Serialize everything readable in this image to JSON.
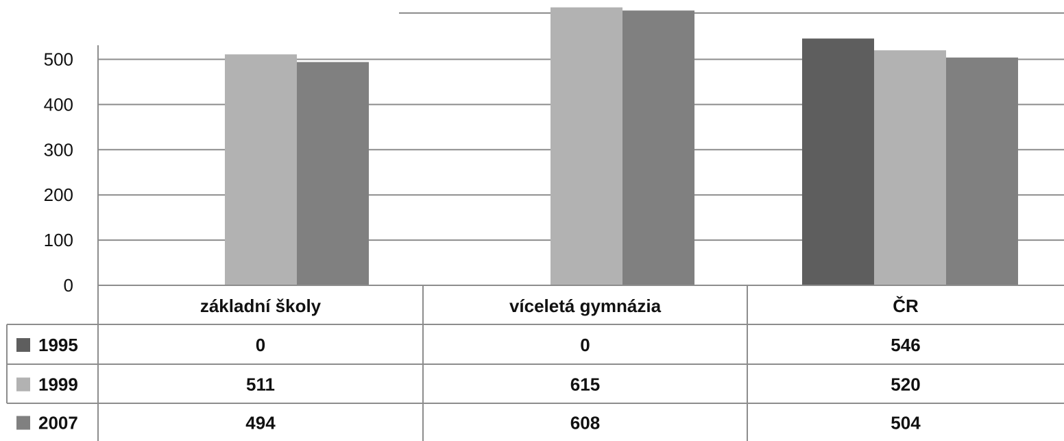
{
  "chart_data": {
    "type": "bar",
    "categories": [
      "základní školy",
      "víceletá gymnázia",
      "ČR"
    ],
    "series": [
      {
        "name": "1995",
        "values": [
          0,
          0,
          546
        ],
        "color": "#5e5e5e"
      },
      {
        "name": "1999",
        "values": [
          511,
          615,
          520
        ],
        "color": "#b2b2b2"
      },
      {
        "name": "2007",
        "values": [
          494,
          608,
          504
        ],
        "color": "#808080"
      }
    ],
    "y_ticks": [
      "0",
      "100",
      "200",
      "300",
      "400",
      "500"
    ],
    "ylim": [
      0,
      620
    ],
    "grid": true,
    "legend": "data-table"
  }
}
